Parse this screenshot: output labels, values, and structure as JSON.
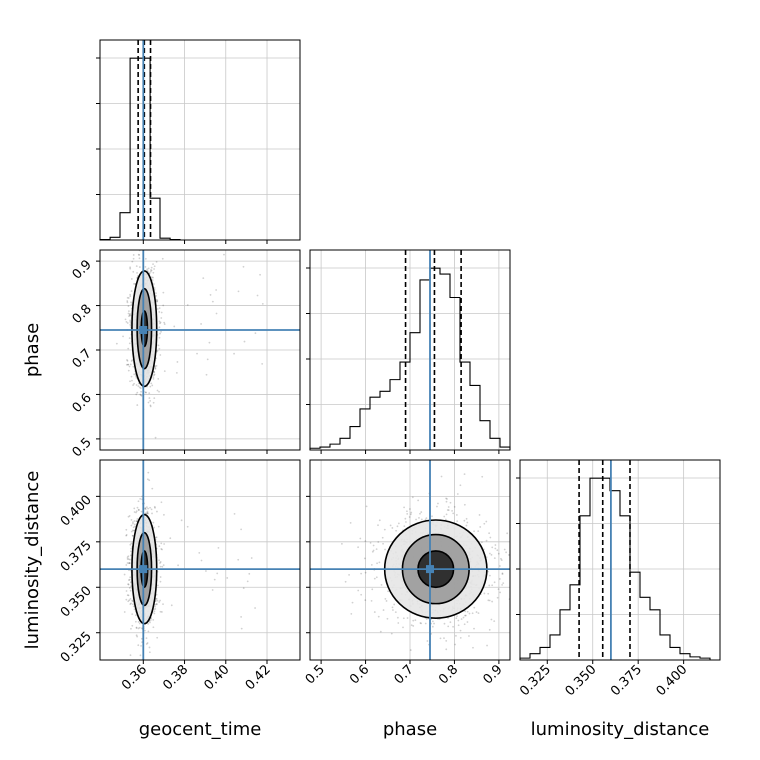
{
  "chart_data": {
    "type": "corner",
    "parameters": [
      "geocent_time",
      "phase",
      "luminosity_distance"
    ],
    "truths": {
      "geocent_time": 0.36,
      "phase": 0.745,
      "luminosity_distance": 0.36
    },
    "grid": true,
    "colors": {
      "truth": "#4682b4",
      "line": "#000000",
      "grid": "#c8c8c8"
    },
    "axes": {
      "geocent_time": {
        "range": [
          0.339,
          0.436
        ],
        "ticks": [
          0.36,
          0.38,
          0.4,
          0.42
        ],
        "tick_labels": [
          "0.36",
          "0.38",
          "0.40",
          "0.42"
        ]
      },
      "phase": {
        "range": [
          0.475,
          0.925
        ],
        "ticks": [
          0.5,
          0.6,
          0.7,
          0.8,
          0.9
        ],
        "tick_labels": [
          "0.5",
          "0.6",
          "0.7",
          "0.8",
          "0.9"
        ]
      },
      "luminosity_distance": {
        "range": [
          0.31,
          0.42
        ],
        "ticks": [
          0.325,
          0.35,
          0.375,
          0.4
        ],
        "tick_labels": [
          "0.325",
          "0.350",
          "0.375",
          "0.400"
        ]
      }
    },
    "histograms": {
      "geocent_time": {
        "edges": [
          0.339,
          0.3439,
          0.3487,
          0.3536,
          0.3584,
          0.3633,
          0.3681,
          0.373,
          0.3778,
          0.3827,
          0.3875,
          0.3924,
          0.3972,
          0.4021,
          0.4069,
          0.4118,
          0.4166,
          0.4215,
          0.4263,
          0.4312,
          0.436
        ],
        "counts": [
          0.5,
          3,
          30,
          200,
          200,
          46,
          2,
          0.5,
          0,
          0,
          0,
          0,
          0,
          0,
          0,
          0,
          0,
          0,
          0,
          0
        ],
        "quantiles": [
          0.3575,
          0.3605,
          0.3635
        ]
      },
      "phase": {
        "edges": [
          0.475,
          0.4975,
          0.52,
          0.5425,
          0.565,
          0.5875,
          0.61,
          0.6325,
          0.655,
          0.6775,
          0.7,
          0.7225,
          0.745,
          0.7675,
          0.79,
          0.8125,
          0.835,
          0.8575,
          0.88,
          0.9025,
          0.925
        ],
        "counts": [
          0.3,
          0.5,
          1,
          2,
          4,
          7,
          9,
          10,
          12,
          15,
          20,
          29,
          31,
          30,
          26,
          15,
          11,
          5,
          2,
          0.5
        ],
        "quantiles": [
          0.69,
          0.755,
          0.815
        ]
      },
      "luminosity_distance": {
        "edges": [
          0.31,
          0.3155,
          0.321,
          0.3265,
          0.332,
          0.3375,
          0.343,
          0.3485,
          0.354,
          0.3595,
          0.365,
          0.3705,
          0.376,
          0.3815,
          0.387,
          0.3925,
          0.398,
          0.4035,
          0.409,
          0.4145,
          0.42
        ],
        "counts": [
          0.3,
          1,
          2,
          4,
          8,
          12,
          23,
          29,
          29,
          27,
          23,
          14,
          10,
          8,
          4,
          2,
          1,
          0.5,
          0.3,
          0
        ],
        "quantiles": [
          0.3425,
          0.3555,
          0.3705
        ]
      }
    },
    "contours": {
      "phase_vs_geocent_time": {
        "center": [
          0.3605,
          0.748
        ],
        "levels": [
          {
            "rx": 0.0015,
            "ry": 0.04
          },
          {
            "rx": 0.0035,
            "ry": 0.09
          },
          {
            "rx": 0.006,
            "ry": 0.13
          }
        ]
      },
      "luminosity_distance_vs_geocent_time": {
        "center": [
          0.3605,
          0.36
        ],
        "levels": [
          {
            "rx": 0.0016,
            "ry": 0.01
          },
          {
            "rx": 0.0035,
            "ry": 0.02
          },
          {
            "rx": 0.006,
            "ry": 0.03
          }
        ]
      },
      "luminosity_distance_vs_phase": {
        "center": [
          0.758,
          0.36
        ],
        "levels": [
          {
            "rx": 0.04,
            "ry": 0.01
          },
          {
            "rx": 0.075,
            "ry": 0.019
          },
          {
            "rx": 0.115,
            "ry": 0.027
          }
        ]
      }
    }
  }
}
